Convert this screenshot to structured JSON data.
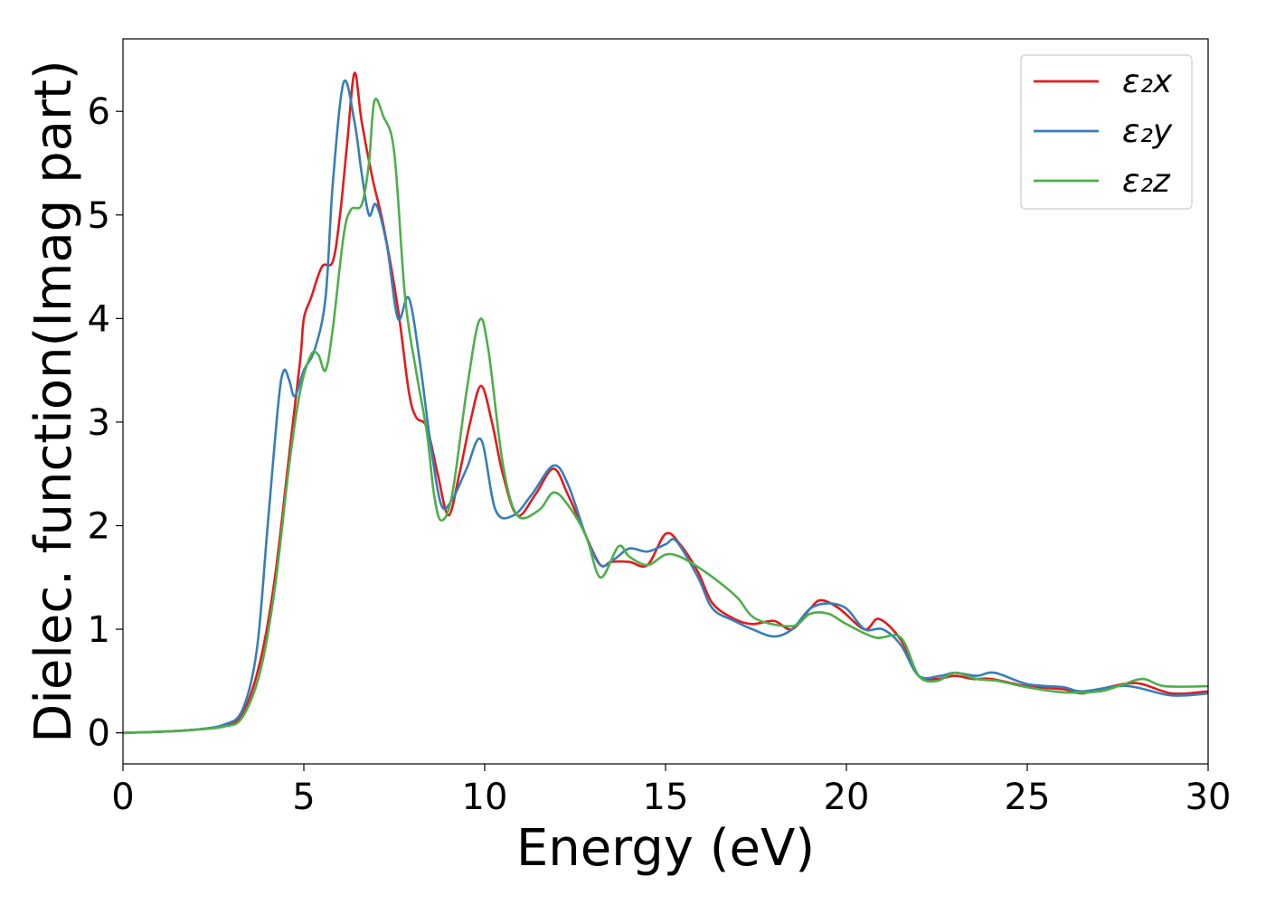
{
  "chart_data": {
    "type": "line",
    "title": "",
    "xlabel": "Energy (eV)",
    "ylabel": "Dielec. function(Imag part)",
    "xlim": [
      0,
      30
    ],
    "ylim": [
      -0.3,
      6.7
    ],
    "x_ticks": [
      0,
      5,
      10,
      15,
      20,
      25,
      30
    ],
    "y_ticks": [
      0,
      1,
      2,
      3,
      4,
      5,
      6
    ],
    "grid": false,
    "legend_position": "top-right",
    "series": [
      {
        "name": "ε₂x",
        "color": "#e41a1c",
        "points": [
          [
            0,
            0
          ],
          [
            1,
            0.01
          ],
          [
            2,
            0.03
          ],
          [
            2.8,
            0.07
          ],
          [
            3.3,
            0.18
          ],
          [
            3.8,
            0.7
          ],
          [
            4.2,
            1.5
          ],
          [
            4.6,
            2.7
          ],
          [
            4.9,
            3.6
          ],
          [
            5.0,
            4.0
          ],
          [
            5.2,
            4.2
          ],
          [
            5.5,
            4.5
          ],
          [
            5.8,
            4.55
          ],
          [
            6.0,
            5.0
          ],
          [
            6.2,
            5.7
          ],
          [
            6.4,
            6.37
          ],
          [
            6.6,
            5.9
          ],
          [
            6.9,
            5.35
          ],
          [
            7.2,
            4.9
          ],
          [
            7.6,
            4.1
          ],
          [
            7.9,
            3.3
          ],
          [
            8.1,
            3.05
          ],
          [
            8.4,
            2.95
          ],
          [
            8.7,
            2.5
          ],
          [
            9.0,
            2.1
          ],
          [
            9.3,
            2.5
          ],
          [
            9.6,
            3.0
          ],
          [
            9.9,
            3.35
          ],
          [
            10.2,
            3.0
          ],
          [
            10.5,
            2.5
          ],
          [
            10.9,
            2.1
          ],
          [
            11.4,
            2.3
          ],
          [
            11.9,
            2.55
          ],
          [
            12.3,
            2.3
          ],
          [
            12.8,
            1.9
          ],
          [
            13.2,
            1.62
          ],
          [
            13.5,
            1.65
          ],
          [
            14.0,
            1.65
          ],
          [
            14.5,
            1.62
          ],
          [
            15.0,
            1.92
          ],
          [
            15.4,
            1.82
          ],
          [
            15.9,
            1.55
          ],
          [
            16.3,
            1.25
          ],
          [
            16.9,
            1.1
          ],
          [
            17.4,
            1.05
          ],
          [
            18.0,
            1.08
          ],
          [
            18.5,
            1.0
          ],
          [
            19.0,
            1.2
          ],
          [
            19.3,
            1.28
          ],
          [
            19.8,
            1.2
          ],
          [
            20.5,
            1.0
          ],
          [
            20.9,
            1.1
          ],
          [
            21.5,
            0.9
          ],
          [
            22.0,
            0.55
          ],
          [
            22.5,
            0.52
          ],
          [
            23.0,
            0.55
          ],
          [
            23.5,
            0.52
          ],
          [
            24.0,
            0.52
          ],
          [
            25.0,
            0.45
          ],
          [
            26.0,
            0.42
          ],
          [
            26.5,
            0.38
          ],
          [
            27.0,
            0.42
          ],
          [
            28.0,
            0.48
          ],
          [
            29.0,
            0.38
          ],
          [
            30.0,
            0.4
          ]
        ]
      },
      {
        "name": "ε₂y",
        "color": "#377eb8",
        "points": [
          [
            0,
            0
          ],
          [
            1,
            0.01
          ],
          [
            2,
            0.03
          ],
          [
            2.8,
            0.08
          ],
          [
            3.3,
            0.22
          ],
          [
            3.7,
            0.8
          ],
          [
            4.0,
            2.0
          ],
          [
            4.3,
            3.2
          ],
          [
            4.45,
            3.5
          ],
          [
            4.6,
            3.4
          ],
          [
            4.75,
            3.25
          ],
          [
            5.0,
            3.5
          ],
          [
            5.3,
            3.7
          ],
          [
            5.6,
            4.2
          ],
          [
            5.8,
            5.3
          ],
          [
            6.1,
            6.28
          ],
          [
            6.4,
            5.9
          ],
          [
            6.6,
            5.4
          ],
          [
            6.8,
            5.0
          ],
          [
            7.0,
            5.1
          ],
          [
            7.3,
            4.7
          ],
          [
            7.6,
            4.0
          ],
          [
            7.9,
            4.2
          ],
          [
            8.2,
            3.6
          ],
          [
            8.5,
            2.8
          ],
          [
            8.8,
            2.2
          ],
          [
            9.1,
            2.25
          ],
          [
            9.5,
            2.55
          ],
          [
            9.9,
            2.83
          ],
          [
            10.3,
            2.15
          ],
          [
            10.8,
            2.1
          ],
          [
            11.3,
            2.3
          ],
          [
            11.9,
            2.58
          ],
          [
            12.3,
            2.4
          ],
          [
            12.8,
            1.9
          ],
          [
            13.2,
            1.62
          ],
          [
            13.6,
            1.68
          ],
          [
            14.0,
            1.78
          ],
          [
            14.5,
            1.75
          ],
          [
            15.0,
            1.82
          ],
          [
            15.3,
            1.85
          ],
          [
            15.9,
            1.5
          ],
          [
            16.3,
            1.2
          ],
          [
            16.9,
            1.08
          ],
          [
            17.4,
            1.0
          ],
          [
            18.0,
            0.93
          ],
          [
            18.5,
            1.0
          ],
          [
            19.0,
            1.2
          ],
          [
            19.5,
            1.25
          ],
          [
            20.0,
            1.2
          ],
          [
            20.5,
            1.0
          ],
          [
            21.0,
            1.0
          ],
          [
            21.5,
            0.85
          ],
          [
            22.0,
            0.55
          ],
          [
            22.6,
            0.55
          ],
          [
            23.0,
            0.58
          ],
          [
            23.6,
            0.55
          ],
          [
            24.1,
            0.58
          ],
          [
            25.0,
            0.47
          ],
          [
            26.0,
            0.44
          ],
          [
            26.5,
            0.4
          ],
          [
            27.5,
            0.45
          ],
          [
            28.0,
            0.44
          ],
          [
            29.0,
            0.36
          ],
          [
            30.0,
            0.38
          ]
        ]
      },
      {
        "name": "ε₂z",
        "color": "#4daf4a",
        "points": [
          [
            0,
            0
          ],
          [
            1,
            0.01
          ],
          [
            2,
            0.03
          ],
          [
            2.8,
            0.06
          ],
          [
            3.3,
            0.15
          ],
          [
            3.8,
            0.6
          ],
          [
            4.2,
            1.4
          ],
          [
            4.6,
            2.6
          ],
          [
            4.9,
            3.3
          ],
          [
            5.2,
            3.65
          ],
          [
            5.4,
            3.65
          ],
          [
            5.6,
            3.5
          ],
          [
            5.8,
            3.9
          ],
          [
            6.1,
            4.8
          ],
          [
            6.3,
            5.05
          ],
          [
            6.6,
            5.1
          ],
          [
            6.8,
            5.5
          ],
          [
            6.95,
            6.1
          ],
          [
            7.2,
            5.95
          ],
          [
            7.5,
            5.6
          ],
          [
            7.8,
            4.2
          ],
          [
            8.1,
            3.5
          ],
          [
            8.4,
            2.9
          ],
          [
            8.6,
            2.3
          ],
          [
            8.8,
            2.05
          ],
          [
            9.1,
            2.3
          ],
          [
            9.5,
            3.3
          ],
          [
            9.85,
            3.98
          ],
          [
            10.1,
            3.7
          ],
          [
            10.5,
            2.6
          ],
          [
            10.9,
            2.1
          ],
          [
            11.5,
            2.15
          ],
          [
            11.9,
            2.32
          ],
          [
            12.3,
            2.2
          ],
          [
            12.8,
            1.9
          ],
          [
            13.2,
            1.5
          ],
          [
            13.7,
            1.8
          ],
          [
            14.0,
            1.7
          ],
          [
            14.5,
            1.62
          ],
          [
            15.0,
            1.72
          ],
          [
            15.4,
            1.7
          ],
          [
            15.9,
            1.6
          ],
          [
            16.5,
            1.45
          ],
          [
            17.0,
            1.3
          ],
          [
            17.5,
            1.1
          ],
          [
            18.5,
            1.03
          ],
          [
            19.0,
            1.15
          ],
          [
            19.5,
            1.15
          ],
          [
            20.0,
            1.05
          ],
          [
            20.8,
            0.92
          ],
          [
            21.5,
            0.92
          ],
          [
            22.0,
            0.55
          ],
          [
            22.5,
            0.5
          ],
          [
            23.0,
            0.58
          ],
          [
            23.6,
            0.52
          ],
          [
            24.2,
            0.5
          ],
          [
            25.0,
            0.44
          ],
          [
            26.0,
            0.39
          ],
          [
            27.0,
            0.4
          ],
          [
            27.6,
            0.46
          ],
          [
            28.2,
            0.52
          ],
          [
            28.8,
            0.45
          ],
          [
            30.0,
            0.45
          ]
        ]
      }
    ]
  }
}
